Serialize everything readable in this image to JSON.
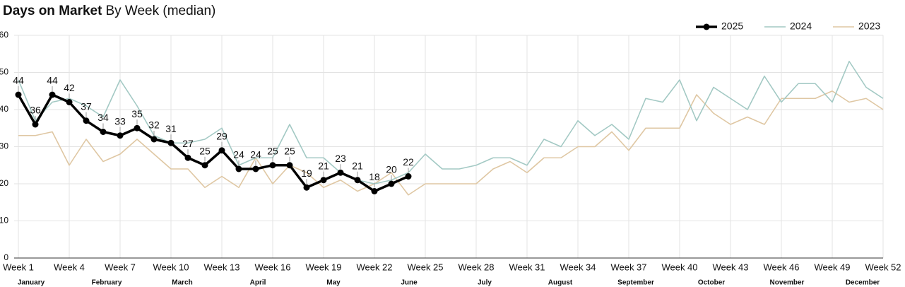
{
  "chart_data": {
    "type": "line",
    "title": "Days on Market",
    "subtitle": "By Week (median)",
    "x": [
      1,
      2,
      3,
      4,
      5,
      6,
      7,
      8,
      9,
      10,
      11,
      12,
      13,
      14,
      15,
      16,
      17,
      18,
      19,
      20,
      21,
      22,
      23,
      24,
      25,
      26,
      27,
      28,
      29,
      30,
      31,
      32,
      33,
      34,
      35,
      36,
      37,
      38,
      39,
      40,
      41,
      42,
      43,
      44,
      45,
      46,
      47,
      48,
      49,
      50,
      51,
      52
    ],
    "xlim": [
      1,
      52
    ],
    "xticks": [
      {
        "value": 1,
        "label": "Week 1"
      },
      {
        "value": 4,
        "label": "Week 4"
      },
      {
        "value": 7,
        "label": "Week 7"
      },
      {
        "value": 10,
        "label": "Week 10"
      },
      {
        "value": 13,
        "label": "Week 13"
      },
      {
        "value": 16,
        "label": "Week 16"
      },
      {
        "value": 19,
        "label": "Week 19"
      },
      {
        "value": 22,
        "label": "Week 22"
      },
      {
        "value": 25,
        "label": "Week 25"
      },
      {
        "value": 28,
        "label": "Week 28"
      },
      {
        "value": 31,
        "label": "Week 31"
      },
      {
        "value": 34,
        "label": "Week 34"
      },
      {
        "value": 37,
        "label": "Week 37"
      },
      {
        "value": 40,
        "label": "Week 40"
      },
      {
        "value": 43,
        "label": "Week 43"
      },
      {
        "value": 46,
        "label": "Week 46"
      },
      {
        "value": 49,
        "label": "Week 49"
      },
      {
        "value": 52,
        "label": "Week 52"
      }
    ],
    "months": [
      "January",
      "February",
      "March",
      "April",
      "May",
      "June",
      "July",
      "August",
      "September",
      "October",
      "November",
      "December"
    ],
    "ylim": [
      0,
      60
    ],
    "yticks": [
      0,
      10,
      20,
      30,
      40,
      50,
      60
    ],
    "grid": true,
    "legend": "top-right",
    "series": [
      {
        "name": "2025",
        "color": "#000000",
        "markers": true,
        "data_labels": true,
        "values": [
          44,
          36,
          44,
          42,
          37,
          34,
          33,
          35,
          32,
          31,
          27,
          25,
          29,
          24,
          24,
          25,
          25,
          19,
          21,
          23,
          21,
          18,
          20,
          22,
          null,
          null,
          null,
          null,
          null,
          null,
          null,
          null,
          null,
          null,
          null,
          null,
          null,
          null,
          null,
          null,
          null,
          null,
          null,
          null,
          null,
          null,
          null,
          null,
          null,
          null,
          null,
          null
        ]
      },
      {
        "name": "2024",
        "color": "#a3c9c4",
        "values": [
          48,
          37,
          42,
          43,
          41,
          38,
          48,
          41,
          33,
          31,
          31,
          32,
          35,
          25,
          27,
          27,
          36,
          27,
          27,
          23,
          21,
          20,
          21,
          23,
          28,
          24,
          24,
          25,
          27,
          27,
          25,
          32,
          30,
          37,
          33,
          36,
          32,
          43,
          42,
          48,
          37,
          46,
          43,
          40,
          49,
          42,
          47,
          47,
          42,
          53,
          46,
          43
        ]
      },
      {
        "name": "2023",
        "color": "#dfc7a3",
        "values": [
          33,
          33,
          34,
          25,
          32,
          26,
          28,
          32,
          28,
          24,
          24,
          19,
          22,
          19,
          27,
          20,
          25,
          23,
          19,
          21,
          18,
          20,
          23,
          17,
          20,
          20,
          20,
          20,
          24,
          26,
          23,
          27,
          27,
          30,
          30,
          34,
          29,
          35,
          35,
          35,
          44,
          39,
          36,
          38,
          36,
          43,
          43,
          43,
          45,
          42,
          43,
          40
        ]
      }
    ]
  }
}
